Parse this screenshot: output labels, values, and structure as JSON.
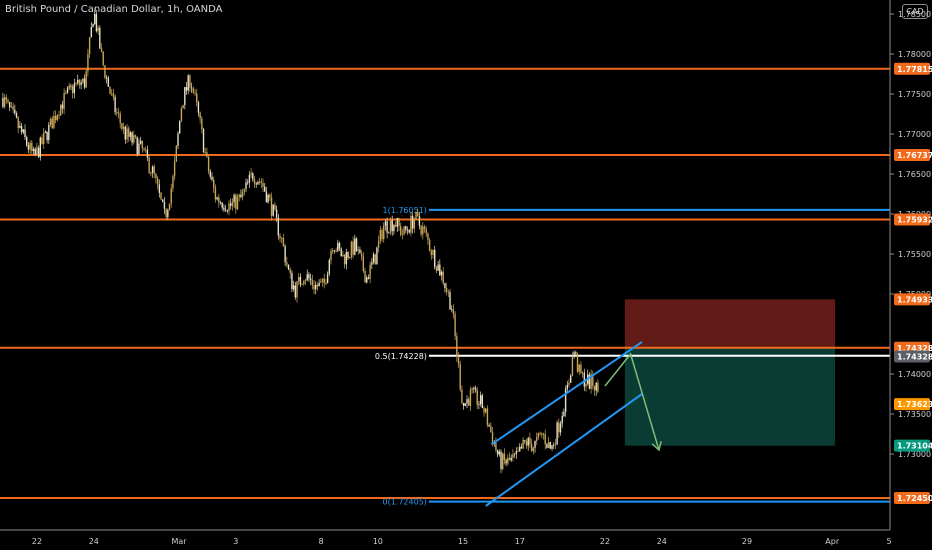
{
  "header": {
    "symbol_title": "British Pound / Canadian Dollar, 1h, OANDA",
    "currency": "CAD"
  },
  "colors": {
    "background": "#000000",
    "axis": "#8a8a8a",
    "candle": "#c8a654",
    "candle_light": "#e8e0c8",
    "resistance": "#f26b1d",
    "fib_line": "#2196f3",
    "fib_mid": "#ffffff",
    "channel": "#2196f3",
    "stop_zone": "#631b17",
    "target_zone": "#0b3c33",
    "arrow": "#7fbf7a",
    "last_price": "#ff9800",
    "target_label": "#089981"
  },
  "chart_data": {
    "type": "candlestick",
    "title": "British Pound / Canadian Dollar, 1h, OANDA",
    "ylim": [
      1.7205,
      1.786
    ],
    "y_ticks": [
      "1.78500",
      "1.78000",
      "1.77500",
      "1.77000",
      "1.76500",
      "1.76000",
      "1.75500",
      "1.75000",
      "1.74000",
      "1.73500",
      "1.73000"
    ],
    "x_ticks": [
      {
        "label": "22",
        "day": 0
      },
      {
        "label": "24",
        "day": 2
      },
      {
        "label": "Mar",
        "day": 5
      },
      {
        "label": "3",
        "day": 7
      },
      {
        "label": "8",
        "day": 10
      },
      {
        "label": "10",
        "day": 12
      },
      {
        "label": "15",
        "day": 15
      },
      {
        "label": "17",
        "day": 17
      },
      {
        "label": "22",
        "day": 20
      },
      {
        "label": "24",
        "day": 22
      },
      {
        "label": "29",
        "day": 25
      },
      {
        "label": "Apr",
        "day": 28
      },
      {
        "label": "5",
        "day": 30
      }
    ],
    "price_path": [
      [
        -1.2,
        1.7745
      ],
      [
        -0.6,
        1.7705
      ],
      [
        -0.1,
        1.767
      ],
      [
        0.2,
        1.769
      ],
      [
        0.8,
        1.7735
      ],
      [
        1.3,
        1.776
      ],
      [
        1.7,
        1.7765
      ],
      [
        2.0,
        1.7855
      ],
      [
        2.3,
        1.779
      ],
      [
        2.7,
        1.7735
      ],
      [
        3.1,
        1.77
      ],
      [
        3.7,
        1.768
      ],
      [
        4.1,
        1.765
      ],
      [
        4.5,
        1.7595
      ],
      [
        4.8,
        1.7645
      ],
      [
        5.1,
        1.774
      ],
      [
        5.4,
        1.777
      ],
      [
        5.7,
        1.772
      ],
      [
        6.0,
        1.766
      ],
      [
        6.3,
        1.762
      ],
      [
        6.8,
        1.761
      ],
      [
        7.2,
        1.762
      ],
      [
        7.6,
        1.765
      ],
      [
        7.9,
        1.764
      ],
      [
        8.2,
        1.7615
      ],
      [
        8.6,
        1.757
      ],
      [
        8.9,
        1.752
      ],
      [
        9.1,
        1.7505
      ],
      [
        9.4,
        1.7525
      ],
      [
        9.8,
        1.751
      ],
      [
        10.1,
        1.751
      ],
      [
        10.4,
        1.7565
      ],
      [
        10.8,
        1.7545
      ],
      [
        11.2,
        1.756
      ],
      [
        11.6,
        1.752
      ],
      [
        11.9,
        1.7545
      ],
      [
        12.2,
        1.7585
      ],
      [
        12.6,
        1.759
      ],
      [
        12.9,
        1.7575
      ],
      [
        13.3,
        1.7595
      ],
      [
        13.6,
        1.758
      ],
      [
        14.0,
        1.7545
      ],
      [
        14.3,
        1.752
      ],
      [
        14.6,
        1.7485
      ],
      [
        14.8,
        1.742
      ],
      [
        15.0,
        1.736
      ],
      [
        15.3,
        1.7375
      ],
      [
        15.7,
        1.736
      ],
      [
        16.0,
        1.7325
      ],
      [
        16.3,
        1.729
      ],
      [
        16.6,
        1.729
      ],
      [
        16.9,
        1.7295
      ],
      [
        17.2,
        1.7315
      ],
      [
        17.5,
        1.731
      ],
      [
        17.8,
        1.7325
      ],
      [
        18.1,
        1.7305
      ],
      [
        18.4,
        1.734
      ],
      [
        18.7,
        1.7385
      ],
      [
        18.9,
        1.743
      ],
      [
        19.1,
        1.74
      ],
      [
        19.3,
        1.7392
      ],
      [
        19.6,
        1.7388
      ],
      [
        19.8,
        1.7375
      ]
    ],
    "horizontal_levels": [
      {
        "price": 1.77815,
        "label": "1.77815"
      },
      {
        "price": 1.76737,
        "label": "1.76737"
      },
      {
        "price": 1.75932,
        "label": "1.75932"
      },
      {
        "price": 1.74328,
        "label": "1.74328"
      },
      {
        "price": 1.7245,
        "label": "1.72450"
      }
    ],
    "fibonacci": {
      "start_day": 13.8,
      "levels": [
        {
          "price": 1.76051,
          "label": "1(1.76051)"
        },
        {
          "price": 1.74228,
          "label": "0.5(1.74228)"
        },
        {
          "price": 1.72405,
          "label": "0(1.72405)"
        }
      ]
    },
    "channel": {
      "upper": [
        [
          16.0,
          1.7312
        ],
        [
          21.3,
          1.744
        ]
      ],
      "lower": [
        [
          15.8,
          1.7235
        ],
        [
          21.3,
          1.7375
        ]
      ]
    },
    "position": {
      "start_day": 20.7,
      "end_day": 28.1,
      "stop": 1.74933,
      "entry": 1.74328,
      "target": 1.73104,
      "stop_label": "1.74933",
      "entry_label": "1.74328",
      "target_label": "1.73104"
    },
    "projection": [
      [
        20.0,
        1.7385
      ],
      [
        20.9,
        1.7425
      ],
      [
        21.9,
        1.7305
      ]
    ],
    "last_price": {
      "price": 1.73623,
      "label": "1.73623"
    }
  }
}
